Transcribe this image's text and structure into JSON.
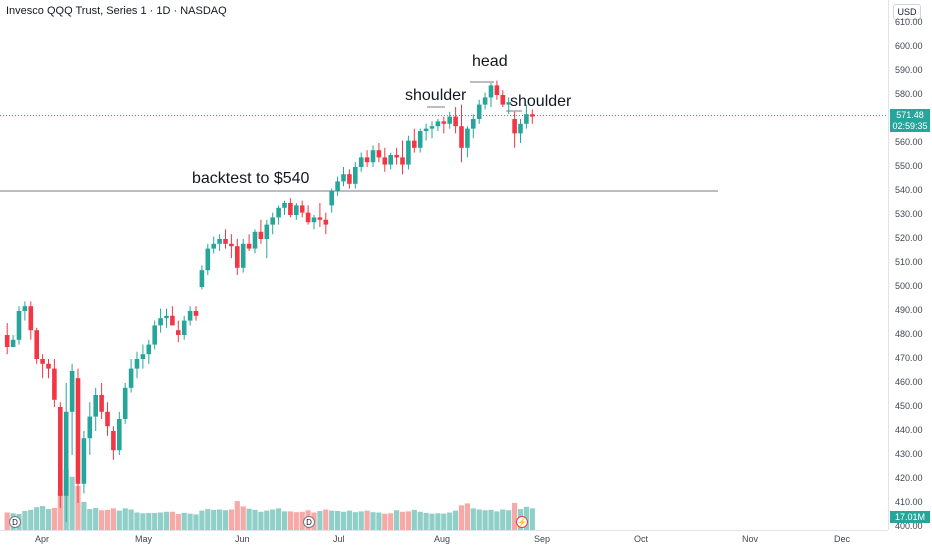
{
  "title": "Invesco QQQ Trust, Series 1 · 1D · NASDAQ",
  "currency": "USD",
  "price_axis_labels": [
    "610.00",
    "600.00",
    "590.00",
    "580.00",
    "570.00",
    "560.00",
    "550.00",
    "540.00",
    "530.00",
    "520.00",
    "510.00",
    "500.00",
    "490.00",
    "480.00",
    "470.00",
    "460.00",
    "450.00",
    "440.00",
    "430.00",
    "420.00",
    "410.00",
    "400.00"
  ],
  "time_axis_labels": [
    "Apr",
    "May",
    "Jun",
    "Jul",
    "Aug",
    "Sep",
    "Oct",
    "Nov",
    "Dec"
  ],
  "last_price": "571.48",
  "countdown": "02:59:35",
  "volume_label": "17.01M",
  "annotations": {
    "backtest": "backtest to $540",
    "left_shoulder": "shoulder",
    "head": "head",
    "right_shoulder": "shoulder"
  },
  "event_markers": {
    "dividend": "D",
    "earnings": "⚡"
  },
  "colors": {
    "up": "#26a69a",
    "down": "#f23645",
    "vol_up": "#8fcfc8",
    "vol_down": "#f7a9a7",
    "last_line": "#26a69a"
  },
  "chart_data": {
    "type": "candlestick",
    "ylim": [
      400,
      612
    ],
    "horizontal_level": 540,
    "last_price": 571.48,
    "candles": [
      [
        480,
        485,
        472,
        475
      ],
      [
        475,
        480,
        476,
        478
      ],
      [
        478,
        492,
        476,
        490
      ],
      [
        490,
        494,
        486,
        492
      ],
      [
        492,
        494,
        478,
        482
      ],
      [
        482,
        483,
        468,
        470
      ],
      [
        470,
        472,
        462,
        468
      ],
      [
        468,
        470,
        462,
        466
      ],
      [
        466,
        470,
        450,
        453
      ],
      [
        450,
        452,
        408,
        413
      ],
      [
        413,
        460,
        402,
        448
      ],
      [
        448,
        468,
        430,
        465
      ],
      [
        462,
        466,
        410,
        418
      ],
      [
        418,
        440,
        414,
        437
      ],
      [
        437,
        452,
        430,
        446
      ],
      [
        446,
        458,
        440,
        455
      ],
      [
        455,
        460,
        445,
        448
      ],
      [
        448,
        452,
        438,
        442
      ],
      [
        440,
        442,
        428,
        432
      ],
      [
        432,
        448,
        430,
        445
      ],
      [
        445,
        460,
        443,
        458
      ],
      [
        458,
        470,
        456,
        466
      ],
      [
        466,
        473,
        462,
        470
      ],
      [
        470,
        476,
        466,
        472
      ],
      [
        472,
        478,
        468,
        476
      ],
      [
        476,
        486,
        474,
        484
      ],
      [
        484,
        491,
        481,
        487
      ],
      [
        487,
        491,
        483,
        488
      ],
      [
        488,
        492,
        486,
        484
      ],
      [
        482,
        486,
        477,
        480
      ],
      [
        480,
        488,
        478,
        486
      ],
      [
        486,
        492,
        484,
        490
      ],
      [
        490,
        492,
        486,
        488
      ],
      [
        500,
        509,
        499,
        507
      ],
      [
        507,
        518,
        505,
        516
      ],
      [
        516,
        521,
        514,
        518
      ],
      [
        518,
        522,
        515,
        520
      ],
      [
        520,
        524,
        516,
        518
      ],
      [
        518,
        522,
        512,
        517
      ],
      [
        517,
        520,
        505,
        508
      ],
      [
        508,
        520,
        506,
        518
      ],
      [
        518,
        522,
        515,
        516
      ],
      [
        516,
        524,
        514,
        523
      ],
      [
        523,
        528,
        518,
        520
      ],
      [
        520,
        528,
        512,
        526
      ],
      [
        526,
        531,
        522,
        529
      ],
      [
        529,
        534,
        526,
        533
      ],
      [
        533,
        536,
        530,
        535
      ],
      [
        535,
        537,
        529,
        530
      ],
      [
        530,
        535,
        528,
        534
      ],
      [
        534,
        536,
        529,
        531
      ],
      [
        531,
        534,
        526,
        527
      ],
      [
        527,
        530,
        524,
        529
      ],
      [
        529,
        535,
        525,
        528
      ],
      [
        528,
        531,
        522,
        526
      ],
      [
        534,
        541,
        531,
        540
      ],
      [
        540,
        546,
        538,
        544
      ],
      [
        544,
        550,
        542,
        547
      ],
      [
        547,
        549,
        541,
        543
      ],
      [
        543,
        552,
        541,
        550
      ],
      [
        550,
        556,
        548,
        554
      ],
      [
        554,
        557,
        550,
        552
      ],
      [
        552,
        559,
        550,
        557
      ],
      [
        557,
        560,
        552,
        554
      ],
      [
        554,
        558,
        548,
        551
      ],
      [
        551,
        556,
        549,
        555
      ],
      [
        555,
        558,
        551,
        554
      ],
      [
        554,
        561,
        547,
        551
      ],
      [
        551,
        563,
        549,
        561
      ],
      [
        561,
        566,
        556,
        558
      ],
      [
        558,
        566,
        556,
        565
      ],
      [
        565,
        568,
        561,
        566
      ],
      [
        566,
        569,
        562,
        567
      ],
      [
        567,
        570,
        565,
        569
      ],
      [
        569,
        571,
        564,
        568
      ],
      [
        568,
        573,
        566,
        571
      ],
      [
        571,
        575,
        564,
        567
      ],
      [
        567,
        576,
        552,
        558
      ],
      [
        558,
        567,
        554,
        566
      ],
      [
        566,
        572,
        562,
        570
      ],
      [
        570,
        578,
        568,
        576
      ],
      [
        576,
        581,
        574,
        579
      ],
      [
        579,
        585,
        575,
        584
      ],
      [
        584,
        586,
        578,
        580
      ],
      [
        580,
        582,
        575,
        576
      ],
      [
        576,
        579,
        572,
        577
      ],
      [
        570,
        573,
        558,
        564
      ],
      [
        564,
        570,
        560,
        568
      ],
      [
        568,
        576,
        566,
        572
      ],
      [
        572,
        574,
        568,
        571
      ]
    ],
    "volumes": [
      [
        46,
        1
      ],
      [
        44,
        0
      ],
      [
        42,
        0
      ],
      [
        50,
        0
      ],
      [
        53,
        0
      ],
      [
        60,
        0
      ],
      [
        63,
        0
      ],
      [
        55,
        0
      ],
      [
        58,
        1
      ],
      [
        102,
        1
      ],
      [
        160,
        0
      ],
      [
        140,
        0
      ],
      [
        116,
        1
      ],
      [
        74,
        0
      ],
      [
        55,
        0
      ],
      [
        58,
        0
      ],
      [
        52,
        1
      ],
      [
        53,
        1
      ],
      [
        57,
        1
      ],
      [
        51,
        0
      ],
      [
        57,
        0
      ],
      [
        54,
        0
      ],
      [
        46,
        0
      ],
      [
        44,
        0
      ],
      [
        45,
        0
      ],
      [
        45,
        0
      ],
      [
        46,
        0
      ],
      [
        48,
        0
      ],
      [
        48,
        1
      ],
      [
        42,
        1
      ],
      [
        45,
        0
      ],
      [
        43,
        0
      ],
      [
        41,
        0
      ],
      [
        51,
        0
      ],
      [
        55,
        0
      ],
      [
        53,
        0
      ],
      [
        54,
        0
      ],
      [
        52,
        0
      ],
      [
        54,
        1
      ],
      [
        76,
        1
      ],
      [
        62,
        1
      ],
      [
        56,
        0
      ],
      [
        53,
        0
      ],
      [
        48,
        0
      ],
      [
        51,
        0
      ],
      [
        54,
        0
      ],
      [
        57,
        0
      ],
      [
        49,
        0
      ],
      [
        49,
        1
      ],
      [
        47,
        1
      ],
      [
        48,
        1
      ],
      [
        52,
        1
      ],
      [
        46,
        1
      ],
      [
        50,
        0
      ],
      [
        54,
        1
      ],
      [
        51,
        0
      ],
      [
        50,
        0
      ],
      [
        48,
        0
      ],
      [
        51,
        0
      ],
      [
        47,
        0
      ],
      [
        49,
        0
      ],
      [
        51,
        1
      ],
      [
        47,
        0
      ],
      [
        46,
        0
      ],
      [
        43,
        1
      ],
      [
        44,
        1
      ],
      [
        52,
        0
      ],
      [
        48,
        1
      ],
      [
        49,
        1
      ],
      [
        53,
        0
      ],
      [
        48,
        0
      ],
      [
        45,
        0
      ],
      [
        43,
        0
      ],
      [
        44,
        0
      ],
      [
        43,
        0
      ],
      [
        46,
        0
      ],
      [
        51,
        0
      ],
      [
        65,
        1
      ],
      [
        70,
        1
      ],
      [
        57,
        0
      ],
      [
        54,
        0
      ],
      [
        52,
        0
      ],
      [
        53,
        0
      ],
      [
        49,
        0
      ],
      [
        54,
        0
      ],
      [
        52,
        0
      ],
      [
        71,
        1
      ],
      [
        55,
        0
      ],
      [
        61,
        0
      ],
      [
        57,
        0
      ]
    ]
  }
}
